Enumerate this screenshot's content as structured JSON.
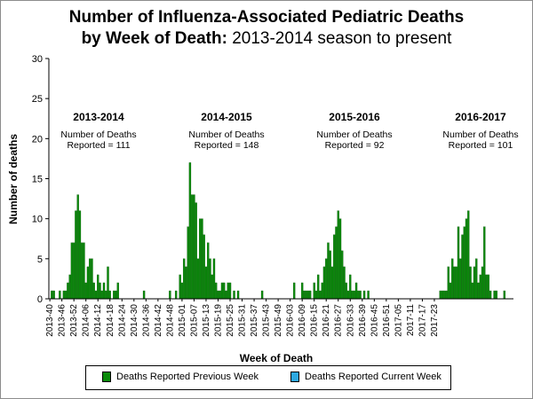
{
  "title": {
    "line1": "Number of Influenza-Associated Pediatric Deaths",
    "line2_bold": "by Week of Death:",
    "line2_normal": " 2013-2014 season to present"
  },
  "colors": {
    "previous": "#0a8a0a",
    "current": "#2ea8e0"
  },
  "legend": {
    "previous_label": "Deaths Reported Previous Week",
    "current_label": "Deaths Reported Current Week"
  },
  "chart_data": {
    "type": "bar",
    "title": "Number of Influenza-Associated Pediatric Deaths by Week of Death: 2013-2014 season to present",
    "xlabel": "Week of Death",
    "ylabel": "Number of deaths",
    "ylim": [
      0,
      30
    ],
    "yticks": [
      0,
      5,
      10,
      15,
      20,
      25,
      30
    ],
    "grid": false,
    "legend_position": "bottom",
    "tick_labels": [
      "2013-40",
      "2013-46",
      "2013-52",
      "2014-06",
      "2014-12",
      "2014-18",
      "2014-24",
      "2014-30",
      "2014-36",
      "2014-42",
      "2014-48",
      "2015-01",
      "2015-07",
      "2015-13",
      "2015-19",
      "2015-25",
      "2015-31",
      "2015-37",
      "2015-43",
      "2015-49",
      "2016-03",
      "2016-09",
      "2016-15",
      "2016-21",
      "2016-27",
      "2016-33",
      "2016-39",
      "2016-45",
      "2016-51",
      "2017-05",
      "2017-11",
      "2017-17",
      "2017-23"
    ],
    "seasons": [
      {
        "label": "2013-2014",
        "line1": "Number of Deaths",
        "line2": "Reported = 111"
      },
      {
        "label": "2014-2015",
        "line1": "Number of Deaths",
        "line2": "Reported = 148"
      },
      {
        "label": "2015-2016",
        "line1": "Number of Deaths",
        "line2": "Reported = 92"
      },
      {
        "label": "2016-2017",
        "line1": "Number of Deaths",
        "line2": "Reported = 101"
      }
    ],
    "series": [
      {
        "name": "Deaths Reported Previous Week",
        "values": [
          0,
          1,
          1,
          0,
          0,
          1,
          0,
          1,
          1,
          2,
          3,
          7,
          7,
          11,
          13,
          11,
          7,
          7,
          2,
          4,
          5,
          5,
          2,
          1,
          3,
          2,
          1,
          2,
          1,
          4,
          1,
          0,
          1,
          1,
          2,
          0,
          0,
          0,
          0,
          0,
          0,
          0,
          0,
          0,
          0,
          0,
          0,
          1,
          0,
          0,
          0,
          0,
          0,
          0,
          0,
          0,
          0,
          0,
          0,
          0,
          1,
          0,
          0,
          1,
          0,
          3,
          2,
          5,
          4,
          9,
          17,
          13,
          13,
          12,
          5,
          10,
          10,
          8,
          4,
          7,
          5,
          3,
          5,
          2,
          1,
          1,
          2,
          2,
          1,
          2,
          2,
          0,
          1,
          0,
          1,
          0,
          0,
          0,
          0,
          0,
          0,
          0,
          0,
          0,
          0,
          0,
          1,
          0,
          0,
          0,
          0,
          0,
          0,
          0,
          0,
          0,
          0,
          0,
          0,
          0,
          0,
          0,
          2,
          0,
          0,
          0,
          2,
          1,
          1,
          1,
          1,
          0,
          2,
          1,
          3,
          1,
          2,
          4,
          5,
          7,
          6,
          4,
          8,
          9,
          11,
          10,
          6,
          4,
          2,
          1,
          3,
          1,
          1,
          2,
          1,
          1,
          0,
          1,
          0,
          1,
          0,
          0,
          0,
          0,
          0,
          0,
          0,
          0,
          0,
          0,
          0,
          0,
          0,
          0,
          0,
          0,
          0,
          0,
          0,
          0,
          0,
          0,
          0,
          0,
          0,
          0,
          0,
          0,
          0,
          0,
          0,
          0,
          0,
          0,
          0,
          1,
          1,
          1,
          1,
          4,
          2,
          5,
          4,
          4,
          9,
          5,
          8,
          9,
          10,
          11,
          4,
          2,
          4,
          5,
          2,
          3,
          4,
          9,
          3,
          3,
          1,
          0,
          1,
          1,
          0,
          0,
          0,
          1,
          0,
          0,
          0,
          0
        ]
      },
      {
        "name": "Deaths Reported Current Week",
        "values": []
      }
    ]
  }
}
